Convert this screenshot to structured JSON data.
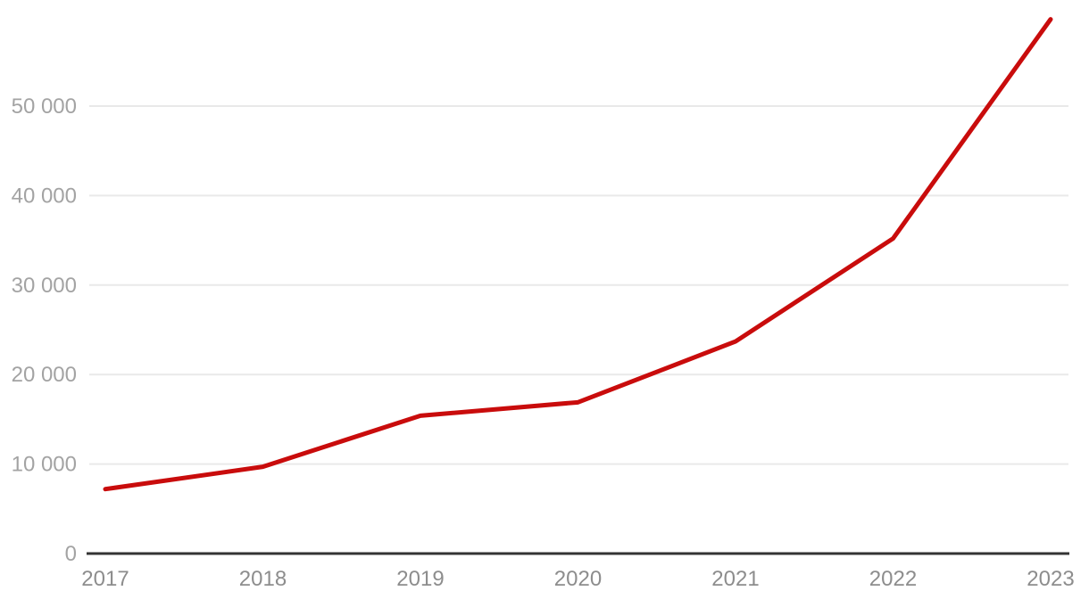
{
  "chart_data": {
    "type": "line",
    "title": "",
    "xlabel": "",
    "ylabel": "",
    "x": [
      "2017",
      "2018",
      "2019",
      "2020",
      "2021",
      "2022",
      "2023"
    ],
    "series": [
      {
        "name": "series-1",
        "values": [
          7200,
          9700,
          15400,
          16900,
          23700,
          35200,
          59700
        ]
      }
    ],
    "ylim": [
      0,
      60000
    ],
    "y_ticks": [
      {
        "value": 0,
        "label": "0"
      },
      {
        "value": 10000,
        "label": "10 000"
      },
      {
        "value": 20000,
        "label": "20 000"
      },
      {
        "value": 30000,
        "label": "30 000"
      },
      {
        "value": 40000,
        "label": "40 000"
      },
      {
        "value": 50000,
        "label": "50 000"
      }
    ],
    "grid": "horizontal",
    "legend": "none",
    "colors": {
      "line": "#c90c0c",
      "gridline": "#e9e9e9",
      "axis": "#333333",
      "y_tick_label": "#a3a3a3",
      "x_tick_label": "#8d8d8d",
      "background": "#ffffff"
    }
  }
}
